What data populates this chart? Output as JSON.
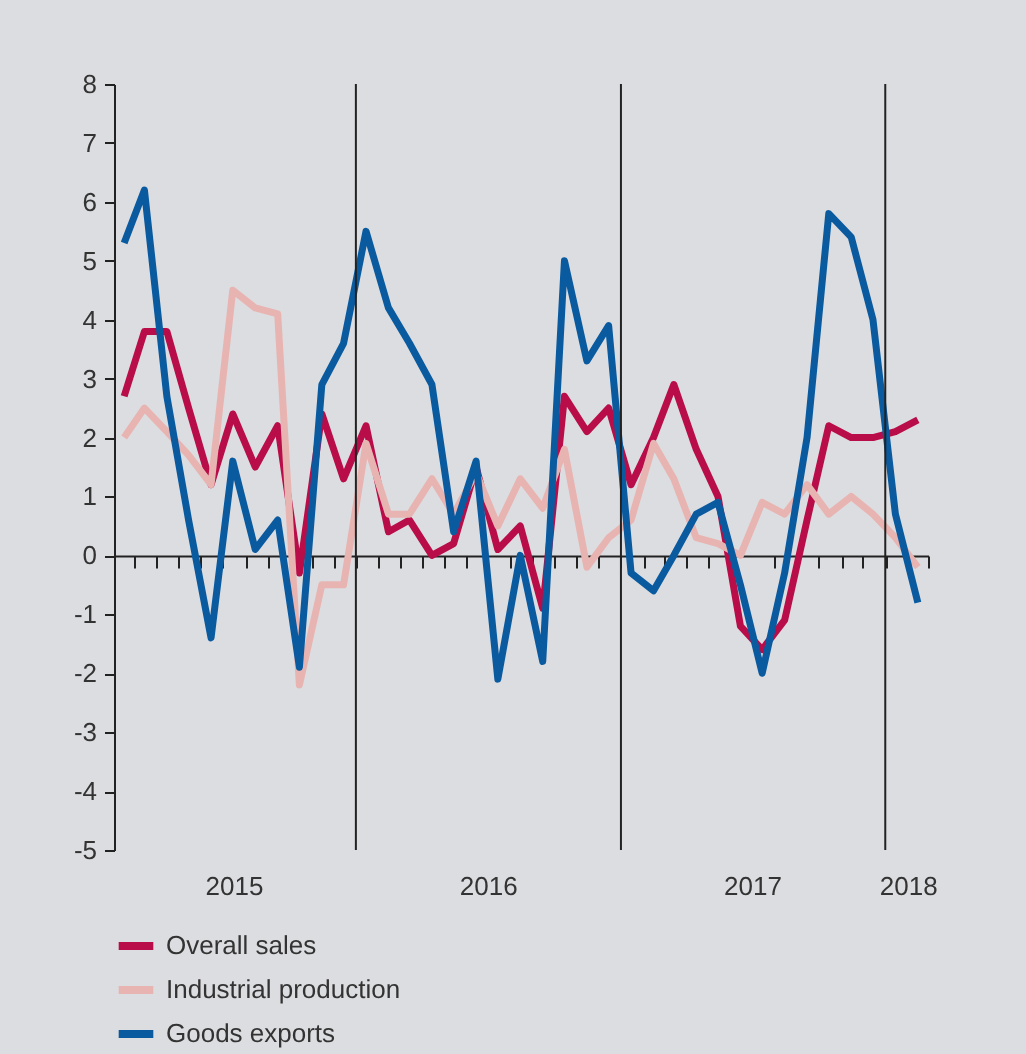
{
  "chart_data": {
    "type": "line",
    "x": [
      "2015-02-15",
      "2015-03-15",
      "2015-04-15",
      "2015-05-15",
      "2015-06-15",
      "2015-07-15",
      "2015-08-15",
      "2015-09-15",
      "2015-10-15",
      "2015-11-15",
      "2015-12-15",
      "2016-01-15",
      "2016-02-15",
      "2016-03-15",
      "2016-04-15",
      "2016-05-15",
      "2016-06-15",
      "2016-07-15",
      "2016-08-15",
      "2016-09-15",
      "2016-10-15",
      "2016-11-15",
      "2016-12-15",
      "2017-01-15",
      "2017-02-15",
      "2017-03-15",
      "2017-04-15",
      "2017-05-15",
      "2017-06-15",
      "2017-07-15",
      "2017-08-15",
      "2017-09-15",
      "2017-10-15",
      "2017-11-15",
      "2017-12-15",
      "2018-01-15",
      "2018-02-15"
    ],
    "series": [
      {
        "name": "Overall sales",
        "color": "#b80d48",
        "values": [
          2.7,
          3.8,
          3.8,
          2.5,
          1.2,
          2.4,
          1.5,
          2.2,
          -0.3,
          2.4,
          1.3,
          2.2,
          0.4,
          0.6,
          0,
          0.2,
          1.5,
          0.1,
          0.5,
          -0.9,
          2.7,
          2.1,
          2.5,
          1.2,
          2,
          2.9,
          1.8,
          1,
          -1.2,
          -1.6,
          -1.1,
          0.6,
          2.2,
          2,
          2,
          2.1,
          2.3
        ]
      },
      {
        "name": "Industrial production",
        "color": "#e8b4b2",
        "values": [
          2,
          2.5,
          2.1,
          1.7,
          1.2,
          4.5,
          4.2,
          4.1,
          -2.2,
          -0.5,
          -0.5,
          1.9,
          0.7,
          0.7,
          1.3,
          0.7,
          1.4,
          0.5,
          1.3,
          0.8,
          1.8,
          -0.2,
          0.3,
          0.6,
          1.9,
          1.3,
          0.3,
          0.2,
          0,
          0.9,
          0.7,
          1.2,
          0.7,
          1,
          0.7,
          0.3,
          -0.2
        ]
      },
      {
        "name": "Goods exports",
        "color": "#0a5aa0",
        "values": [
          5.3,
          6.2,
          2.7,
          0.6,
          -1.4,
          1.6,
          0.1,
          0.6,
          -1.9,
          2.9,
          3.6,
          5.5,
          4.2,
          3.6,
          2.9,
          0.4,
          1.6,
          -2.1,
          0,
          -1.8,
          5,
          3.3,
          3.9,
          -0.3,
          -0.6,
          0,
          0.7,
          0.9,
          -0.5,
          -2,
          -0.3,
          2,
          5.8,
          5.4,
          4,
          0.7,
          -0.8
        ]
      }
    ],
    "xlim": [
      "2015-02-01",
      "2018-03-01"
    ],
    "xticks": [
      {
        "value": "2015-07-16",
        "label": "2015"
      },
      {
        "value": "2016-07-01",
        "label": "2016"
      },
      {
        "value": "2017-07-01",
        "label": "2017"
      },
      {
        "value": "2018-02-01",
        "label": "2018"
      },
      {
        "value": "2015-03-01",
        "label": null
      },
      {
        "value": "2015-04-01",
        "label": null
      },
      {
        "value": "2015-05-01",
        "label": null
      },
      {
        "value": "2015-06-01",
        "label": null
      },
      {
        "value": "2015-07-01",
        "label": null
      },
      {
        "value": "2015-08-01",
        "label": null
      },
      {
        "value": "2015-09-01",
        "label": null
      },
      {
        "value": "2015-10-01",
        "label": null
      },
      {
        "value": "2015-11-01",
        "label": null
      },
      {
        "value": "2015-12-01",
        "label": null
      },
      {
        "value": "2016-01-01",
        "label": null
      },
      {
        "value": "2016-02-01",
        "label": null
      },
      {
        "value": "2016-03-01",
        "label": null
      },
      {
        "value": "2016-04-01",
        "label": null
      },
      {
        "value": "2016-05-01",
        "label": null
      },
      {
        "value": "2016-06-01",
        "label": null
      },
      {
        "value": "2016-08-01",
        "label": null
      },
      {
        "value": "2016-09-01",
        "label": null
      },
      {
        "value": "2016-10-01",
        "label": null
      },
      {
        "value": "2016-11-01",
        "label": null
      },
      {
        "value": "2016-12-01",
        "label": null
      },
      {
        "value": "2017-01-01",
        "label": null
      },
      {
        "value": "2017-02-01",
        "label": null
      },
      {
        "value": "2017-03-01",
        "label": null
      },
      {
        "value": "2017-04-01",
        "label": null
      },
      {
        "value": "2017-05-01",
        "label": null
      },
      {
        "value": "2017-06-01",
        "label": null
      },
      {
        "value": "2017-08-01",
        "label": null
      },
      {
        "value": "2017-09-01",
        "label": null
      },
      {
        "value": "2017-10-01",
        "label": null
      },
      {
        "value": "2017-11-01",
        "label": null
      },
      {
        "value": "2017-12-01",
        "label": null
      },
      {
        "value": "2018-01-01",
        "label": null
      },
      {
        "value": "2018-03-01",
        "label": null
      }
    ],
    "ylim": [
      -5,
      8
    ],
    "yticks": [
      -5,
      -4,
      -3,
      -2,
      -1,
      0,
      1,
      2,
      3,
      4,
      5,
      6,
      7,
      8
    ],
    "ref_lines": [
      {
        "axis": "x",
        "value": "2016-01-01",
        "color": "#222222"
      },
      {
        "axis": "x",
        "value": "2017-01-01",
        "color": "#222222"
      },
      {
        "axis": "x",
        "value": "2018-01-01",
        "color": "#222222"
      }
    ],
    "legend": "bottom"
  }
}
